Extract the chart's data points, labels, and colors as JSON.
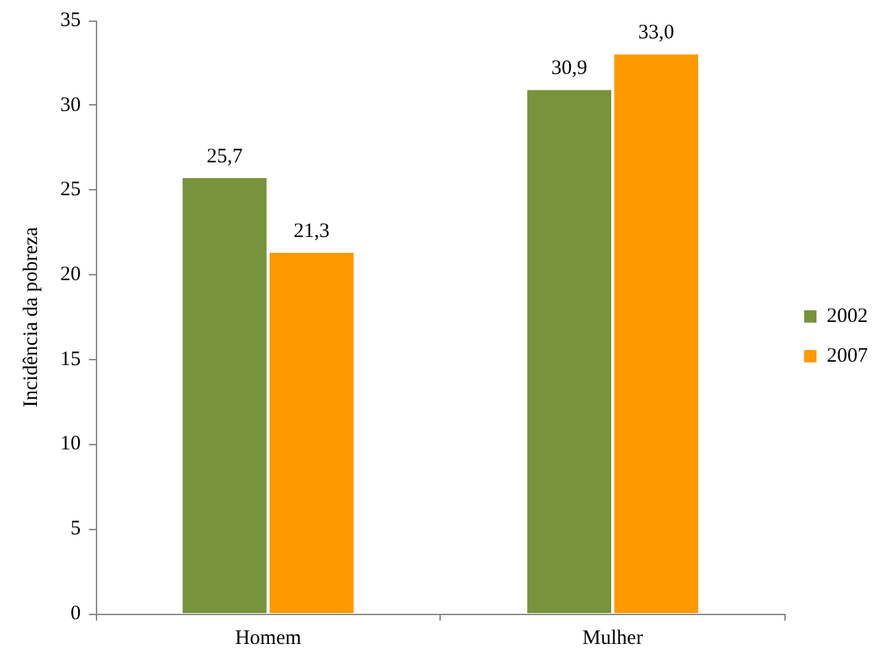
{
  "chart_data": {
    "type": "bar",
    "ylabel": "Incidência da pobreza",
    "categories": [
      "Homem",
      "Mulher"
    ],
    "series": [
      {
        "name": "2002",
        "color": "#77933c",
        "values": [
          25.7,
          30.9
        ],
        "value_labels": [
          "25,7",
          "30,9"
        ]
      },
      {
        "name": "2007",
        "color": "#ff9900",
        "values": [
          21.3,
          33.0
        ],
        "value_labels": [
          "21,3",
          "33,0"
        ]
      }
    ],
    "ylim": [
      0,
      35
    ],
    "yticks": [
      0,
      5,
      10,
      15,
      20,
      25,
      30,
      35
    ],
    "grid": false,
    "legend": "right"
  }
}
